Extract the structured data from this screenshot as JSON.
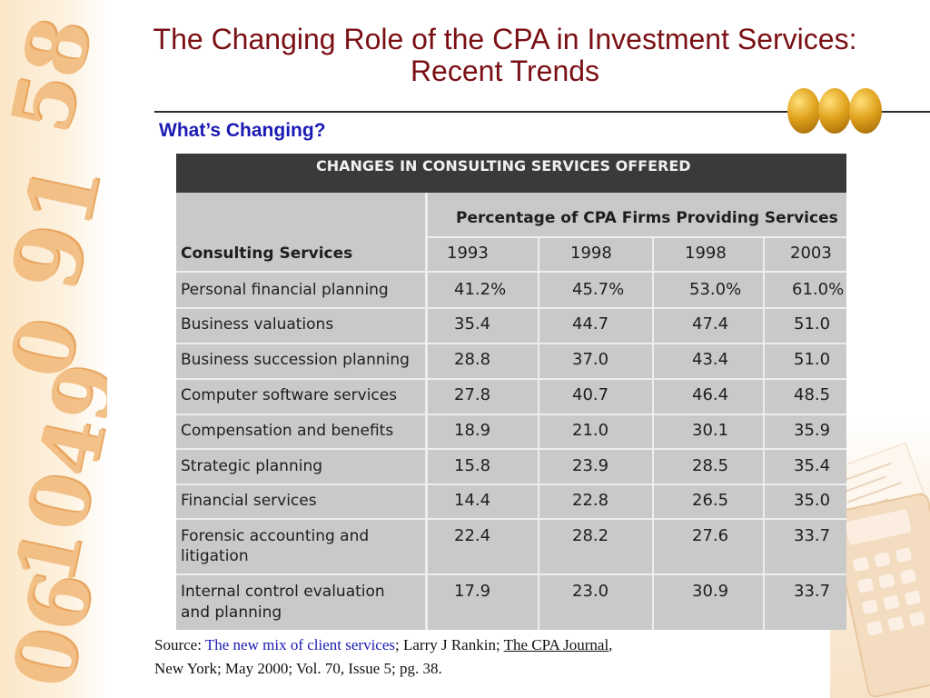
{
  "slide": {
    "title_line1": "The Changing Role of the CPA in Investment Services:",
    "title_line2": "Recent Trends",
    "subtitle": "What’s Changing?"
  },
  "table": {
    "caption": "CHANGES IN CONSULTING SERVICES OFFERED",
    "group_header": "Percentage of CPA Firms Providing Services",
    "row_header": "Consulting Services",
    "years": [
      "1993",
      "1998",
      "1998",
      "2003"
    ],
    "rows": [
      {
        "label": [
          "Personal financial planning"
        ],
        "values": [
          "41.2%",
          "45.7%",
          "53.0%",
          "61.0%"
        ]
      },
      {
        "label": [
          "Business valuations"
        ],
        "values": [
          "35.4",
          "44.7",
          "47.4",
          "51.0"
        ]
      },
      {
        "label": [
          "Business succession planning"
        ],
        "values": [
          "28.8",
          "37.0",
          "43.4",
          "51.0"
        ]
      },
      {
        "label": [
          "Computer software services"
        ],
        "values": [
          "27.8",
          "40.7",
          "46.4",
          "48.5"
        ]
      },
      {
        "label": [
          "Compensation and benefits"
        ],
        "values": [
          "18.9",
          "21.0",
          "30.1",
          "35.9"
        ]
      },
      {
        "label": [
          "Strategic planning"
        ],
        "values": [
          "15.8",
          "23.9",
          "28.5",
          "35.4"
        ]
      },
      {
        "label": [
          "Financial services"
        ],
        "values": [
          "14.4",
          "22.8",
          "26.5",
          "35.0"
        ]
      },
      {
        "label": [
          "Forensic accounting and",
          "litigation"
        ],
        "values": [
          "22.4",
          "28.2",
          "27.6",
          "33.7"
        ]
      },
      {
        "label": [
          "Internal control evaluation",
          "and planning"
        ],
        "values": [
          "17.9",
          "23.0",
          "30.9",
          "33.7"
        ]
      }
    ]
  },
  "source": {
    "prefix": "Source: ",
    "article": "The new mix of client services",
    "sep1": "; Larry J Rankin; ",
    "journal": "The CPA Journal",
    "sep2": ",",
    "line2": "New York; May 2000; Vol. 70, Issue 5; pg. 38."
  },
  "decor": {
    "left_numerals": [
      "58",
      "91",
      "0",
      "1049",
      "06"
    ],
    "accent_color": "#7a0f14",
    "subtitle_color": "#1a1ab4"
  }
}
